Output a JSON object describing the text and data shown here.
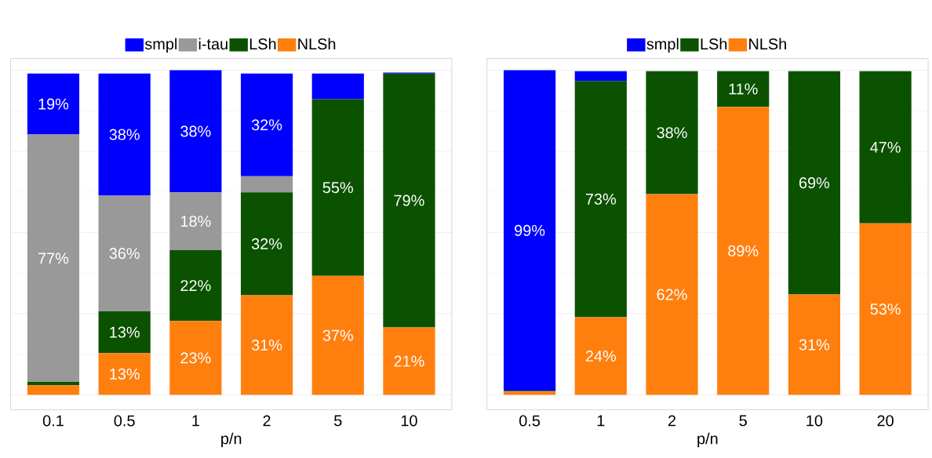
{
  "chart_data": [
    {
      "type": "bar",
      "stacked": true,
      "grid": "y",
      "legend": "top",
      "xlabel": "p/n",
      "categories": [
        "0.1",
        "0.5",
        "1",
        "2",
        "5",
        "10"
      ],
      "series": [
        {
          "name": "NLSh",
          "color": "#ff7f0e",
          "values": [
            3,
            13,
            23,
            31,
            37,
            21
          ],
          "value_labels": [
            null,
            "13%",
            "23%",
            "31%",
            "37%",
            "21%"
          ]
        },
        {
          "name": "LSh",
          "color": "#0b5200",
          "values": [
            1,
            13,
            22,
            32,
            55,
            79
          ],
          "value_labels": [
            null,
            "13%",
            "22%",
            "32%",
            "55%",
            "79%"
          ]
        },
        {
          "name": "i-tau",
          "color": "#999999",
          "values": [
            77,
            36,
            18,
            5,
            null,
            null
          ],
          "value_labels": [
            "77%",
            "36%",
            "18%",
            null,
            null,
            null
          ]
        },
        {
          "name": "smpl",
          "color": "#0000ff",
          "values": [
            19,
            38,
            38,
            32,
            8,
            0.3
          ],
          "value_labels": [
            "19%",
            "38%",
            "38%",
            "32%",
            null,
            null
          ]
        }
      ]
    },
    {
      "type": "bar",
      "stacked": true,
      "grid": "y",
      "legend": "top",
      "xlabel": "p/n",
      "categories": [
        "0.5",
        "1",
        "2",
        "5",
        "10",
        "20"
      ],
      "series": [
        {
          "name": "NLSh",
          "color": "#ff7f0e",
          "values": [
            1,
            24,
            62,
            89,
            31,
            53
          ],
          "value_labels": [
            null,
            "24%",
            "62%",
            "89%",
            "31%",
            "53%"
          ]
        },
        {
          "name": "LSh",
          "color": "#0b5200",
          "values": [
            0.3,
            73,
            38,
            11,
            69,
            47
          ],
          "value_labels": [
            null,
            "73%",
            "38%",
            "11%",
            "69%",
            "47%"
          ]
        },
        {
          "name": "smpl",
          "color": "#0000ff",
          "values": [
            99,
            3,
            null,
            null,
            null,
            null
          ],
          "value_labels": [
            "99%",
            null,
            null,
            null,
            null,
            null
          ]
        }
      ]
    }
  ]
}
